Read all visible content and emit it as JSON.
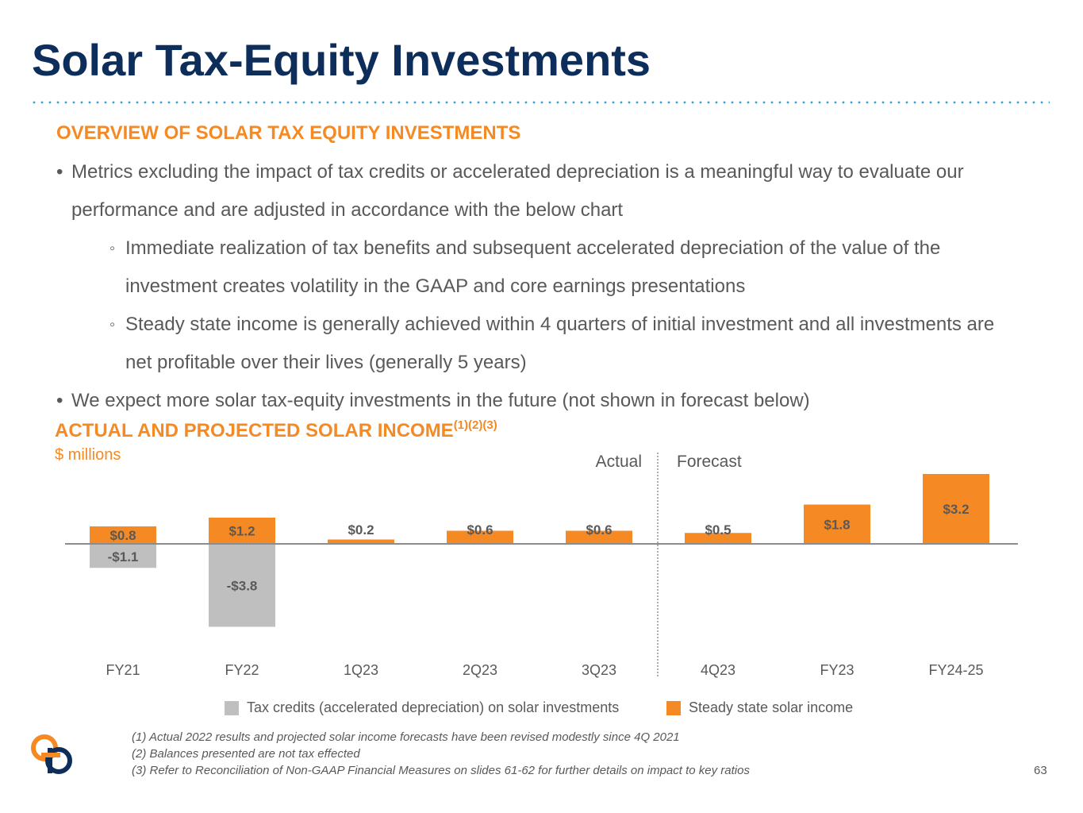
{
  "title": "Solar Tax-Equity Investments",
  "overview": {
    "heading": "OVERVIEW OF SOLAR TAX EQUITY INVESTMENTS",
    "bullets": [
      "Metrics excluding the impact of tax credits or accelerated depreciation is a meaningful way to evaluate our performance and are adjusted in accordance with the below chart",
      "Immediate realization of tax benefits and subsequent accelerated depreciation of the value of the investment creates volatility in the GAAP and core earnings presentations",
      "Steady state income is generally achieved within 4 quarters of initial investment and all investments are net profitable over their lives (generally 5 years)",
      "We expect more solar tax-equity investments in the future (not shown in forecast below)"
    ],
    "bullet_mark": "•",
    "sub_mark": "◦"
  },
  "chart_section": {
    "heading": "ACTUAL AND PROJECTED SOLAR INCOME",
    "heading_sup": "(1)(2)(3)",
    "units": "$ millions"
  },
  "chart_data": {
    "type": "bar",
    "categories": [
      "FY21",
      "FY22",
      "1Q23",
      "2Q23",
      "3Q23",
      "4Q23",
      "FY23",
      "FY24-25"
    ],
    "series": [
      {
        "name": "Tax credits (accelerated depreciation) on solar investments",
        "values": [
          -1.1,
          -3.8,
          null,
          null,
          null,
          null,
          null,
          null
        ],
        "labels": [
          "-$1.1",
          "-$3.8",
          "",
          "",
          "",
          "",
          "",
          ""
        ],
        "color": "#bfbfbf"
      },
      {
        "name": "Steady state solar income",
        "values": [
          0.8,
          1.2,
          0.2,
          0.6,
          0.6,
          0.5,
          1.8,
          3.2
        ],
        "labels": [
          "$0.8",
          "$1.2",
          "$0.2",
          "$0.6",
          "$0.6",
          "$0.5",
          "$1.8",
          "$3.2"
        ],
        "color": "#f58a25"
      }
    ],
    "annotations": [
      "Actual",
      "Forecast"
    ],
    "divider_after": "3Q23",
    "legend_position": "bottom"
  },
  "footnotes": [
    "(1) Actual 2022 results and projected solar income forecasts have been revised modestly since 4Q 2021",
    "(2) Balances presented are not tax effected",
    "(3) Refer to Reconciliation of Non-GAAP Financial Measures on slides 61-62 for further details on impact to key ratios"
  ],
  "page_number": "63",
  "colors": {
    "title": "#0d2d5b",
    "accent": "#f58a25",
    "text": "#595959",
    "gray_bar": "#bfbfbf",
    "dots": "#35a4d4"
  }
}
